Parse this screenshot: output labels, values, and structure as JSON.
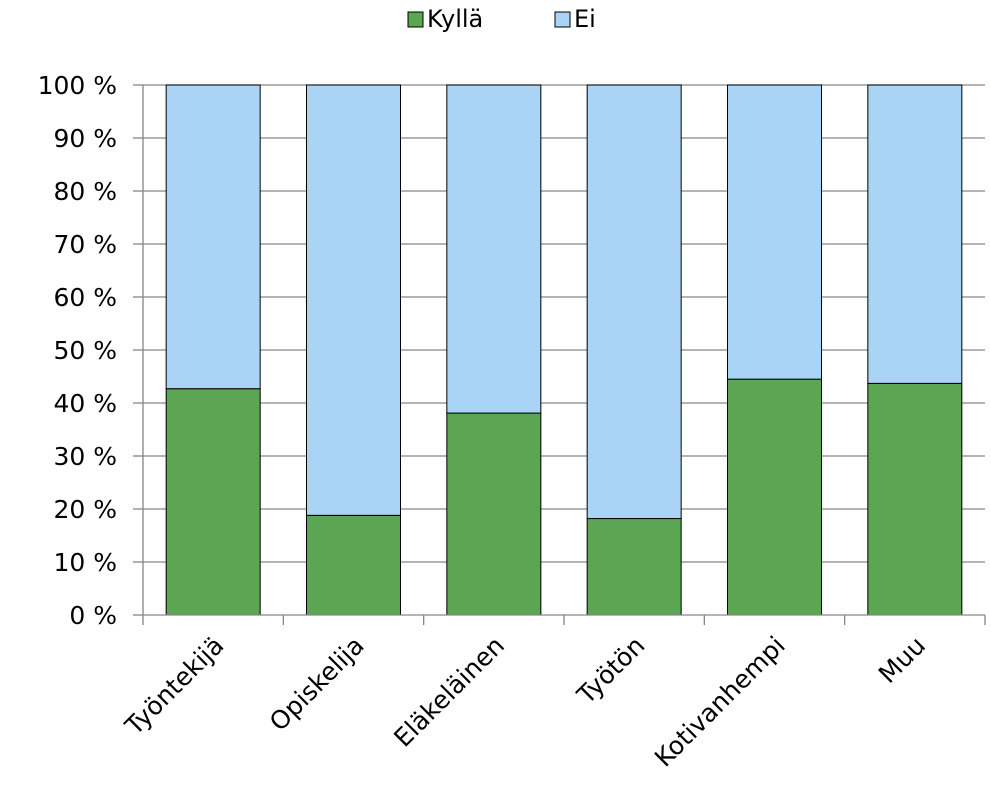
{
  "chart_data": {
    "type": "bar",
    "stacked": true,
    "percent_stacked": true,
    "categories": [
      "Työntekijä",
      "Opiskelija",
      "Eläkeläinen",
      "Työtön",
      "Kotivanhempi",
      "Muu"
    ],
    "series": [
      {
        "name": "Kyllä",
        "color": "#5ba553",
        "values": [
          42.7,
          18.8,
          38.1,
          18.2,
          44.5,
          43.7
        ]
      },
      {
        "name": "Ei",
        "color": "#a9d4f5",
        "values": [
          57.3,
          81.2,
          61.9,
          81.8,
          55.5,
          56.3
        ]
      }
    ],
    "y_ticks": [
      "0 %",
      "10 %",
      "20 %",
      "30 %",
      "40 %",
      "50 %",
      "60 %",
      "70 %",
      "80 %",
      "90 %",
      "100 %"
    ],
    "ylim": [
      0,
      100
    ],
    "grid": true,
    "legend": "top"
  }
}
